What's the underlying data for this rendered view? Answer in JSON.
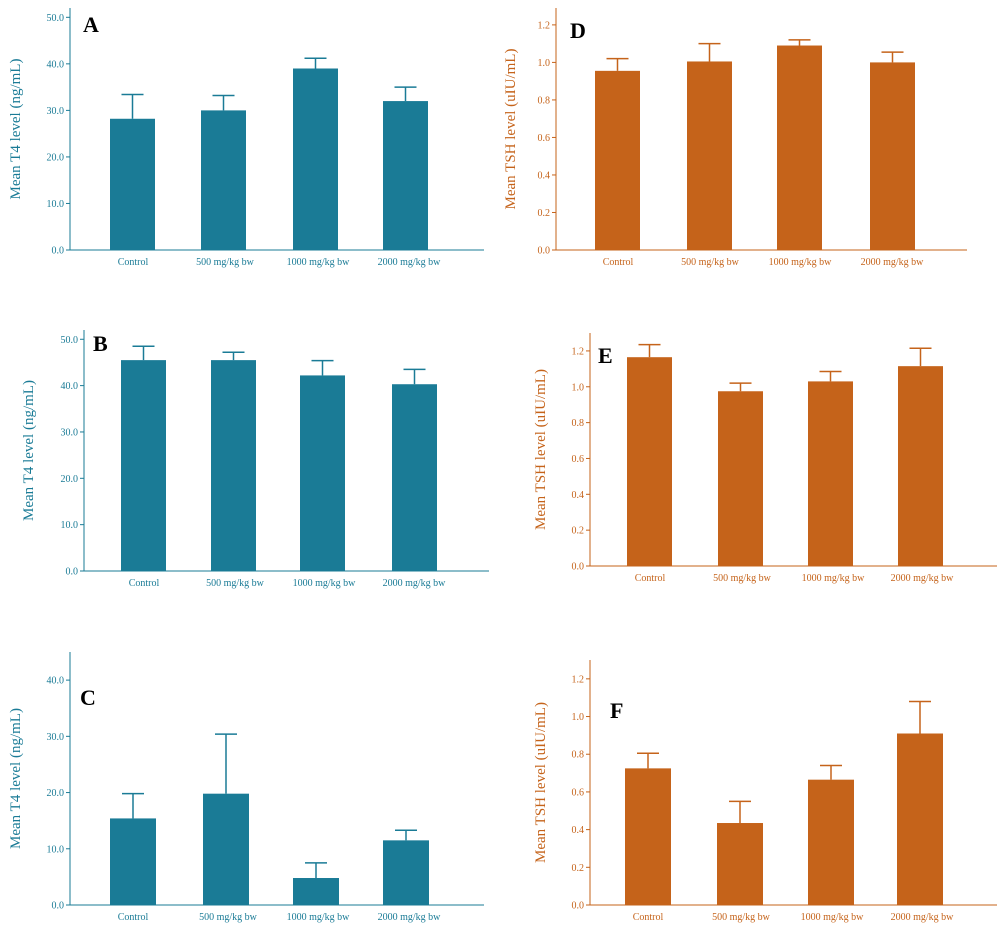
{
  "colors": {
    "teal": "#1a7b96",
    "orange": "#c5631a"
  },
  "chart_data": [
    {
      "panel": "A",
      "type": "bar",
      "color": "teal",
      "ylabel": "Mean T4 level (ng/mL)",
      "categories": [
        "Control",
        "500 mg/kg bw",
        "1000 mg/kg bw",
        "2000 mg/kg bw"
      ],
      "values": [
        28.2,
        30.0,
        39.0,
        32.0
      ],
      "errors": [
        5.2,
        3.2,
        2.2,
        3.0
      ],
      "yticks": [
        0,
        10,
        20,
        30,
        40,
        50
      ],
      "tick_decimals": 1,
      "ylim": [
        0,
        52
      ]
    },
    {
      "panel": "B",
      "type": "bar",
      "color": "teal",
      "ylabel": "Mean T4 level (ng/mL)",
      "categories": [
        "Control",
        "500 mg/kg bw",
        "1000 mg/kg bw",
        "2000 mg/kg bw"
      ],
      "values": [
        45.5,
        45.5,
        42.2,
        40.3
      ],
      "errors": [
        3.0,
        1.7,
        3.2,
        3.2
      ],
      "yticks": [
        0,
        10,
        20,
        30,
        40,
        50
      ],
      "tick_decimals": 1,
      "ylim": [
        0,
        52
      ]
    },
    {
      "panel": "C",
      "type": "bar",
      "color": "teal",
      "ylabel": "Mean T4 level (ng/mL)",
      "categories": [
        "Control",
        "500 mg/kg bw",
        "1000 mg/kg bw",
        "2000 mg/kg bw"
      ],
      "values": [
        15.4,
        19.8,
        4.8,
        11.5
      ],
      "errors": [
        4.4,
        10.6,
        2.7,
        1.8
      ],
      "yticks": [
        0,
        10,
        20,
        30,
        40
      ],
      "tick_decimals": 1,
      "ylim": [
        0,
        45
      ]
    },
    {
      "panel": "D",
      "type": "bar",
      "color": "orange",
      "ylabel": "Mean TSH level (uIU/mL)",
      "categories": [
        "Control",
        "500 mg/kg bw",
        "1000 mg/kg bw",
        "2000 mg/kg bw"
      ],
      "values": [
        0.955,
        1.005,
        1.09,
        1.0
      ],
      "errors": [
        0.065,
        0.095,
        0.03,
        0.055
      ],
      "yticks": [
        0,
        0.2,
        0.4,
        0.6,
        0.8,
        1.0,
        1.2
      ],
      "tick_decimals": 1,
      "ylim": [
        0,
        1.29
      ]
    },
    {
      "panel": "E",
      "type": "bar",
      "color": "orange",
      "ylabel": "Mean TSH level (uIU/mL)",
      "categories": [
        "Control",
        "500 mg/kg bw",
        "1000 mg/kg bw",
        "2000 mg/kg bw"
      ],
      "values": [
        1.165,
        0.975,
        1.03,
        1.115
      ],
      "errors": [
        0.07,
        0.045,
        0.055,
        0.1
      ],
      "yticks": [
        0,
        0.2,
        0.4,
        0.6,
        0.8,
        1.0,
        1.2
      ],
      "tick_decimals": 1,
      "ylim": [
        0,
        1.3
      ]
    },
    {
      "panel": "F",
      "type": "bar",
      "color": "orange",
      "ylabel": "Mean TSH level (uIU/mL)",
      "categories": [
        "Control",
        "500 mg/kg bw",
        "1000 mg/kg bw",
        "2000 mg/kg bw"
      ],
      "values": [
        0.725,
        0.435,
        0.665,
        0.91
      ],
      "errors": [
        0.08,
        0.115,
        0.075,
        0.17
      ],
      "yticks": [
        0,
        0.2,
        0.4,
        0.6,
        0.8,
        1.0,
        1.2
      ],
      "tick_decimals": 1,
      "ylim": [
        0,
        1.3
      ]
    }
  ]
}
